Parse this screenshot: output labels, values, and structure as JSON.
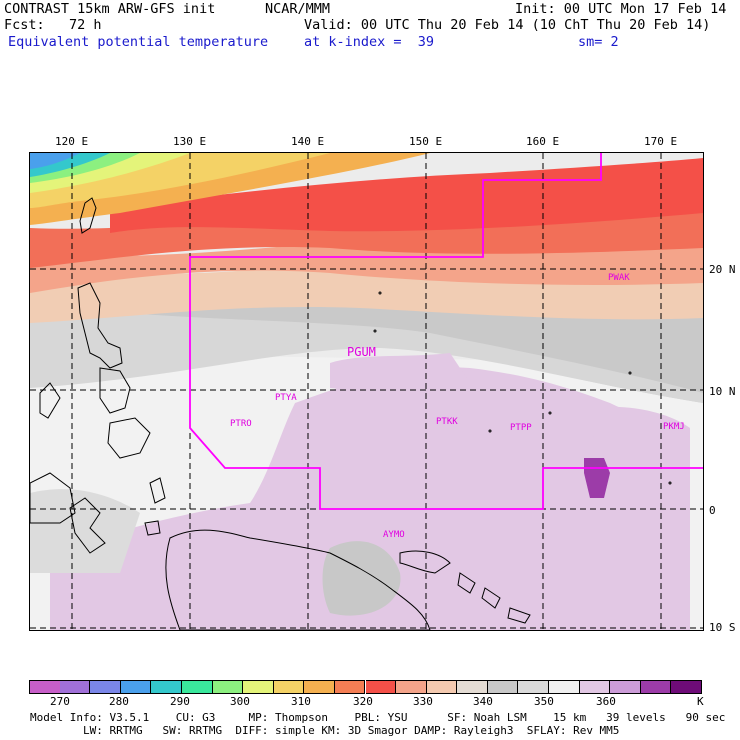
{
  "header": {
    "line1_left": "CONTRAST 15km ARW-GFS init",
    "line1_mid": "NCAR/MMM",
    "line1_right": "Init: 00 UTC Mon 17 Feb 14",
    "line2_left": "Fcst:   72 h",
    "line2_right": "Valid: 00 UTC Thu 20 Feb 14 (10 ChT Thu 20 Feb 14)",
    "line3_left": "Equivalent potential temperature",
    "line3_mid": "at k-index =  39",
    "line3_right": "sm= 2"
  },
  "map": {
    "lon_labels": [
      "120 E",
      "130 E",
      "140 E",
      "150 E",
      "160 E",
      "170 E"
    ],
    "lat_labels": [
      "20 N",
      "10 N",
      "0",
      "10 S"
    ],
    "stations": [
      "PWAK",
      "PGUM",
      "PTYA",
      "PTRO",
      "PTKK",
      "PTPP",
      "PKMJ",
      "AYMO"
    ]
  },
  "colorbar": {
    "labels": [
      "270",
      "280",
      "290",
      "300",
      "310",
      "320",
      "330",
      "340",
      "350",
      "360"
    ],
    "unit": "K",
    "colors": [
      "#c75ec8",
      "#a070d8",
      "#7a86e8",
      "#4aa0ec",
      "#34c8cc",
      "#3ae89c",
      "#8cf080",
      "#e4f47a",
      "#f4d266",
      "#f4b050",
      "#f47e54",
      "#f45048",
      "#f4a48a",
      "#f4cab0",
      "#e4dcd4",
      "#c8c8c8",
      "#dadada",
      "#f0f0f0",
      "#e2c8e4",
      "#cc9cd8",
      "#9c3ca8",
      "#6e0c78"
    ]
  },
  "footer": {
    "line1": "Model Info: V3.5.1    CU: G3     MP: Thompson    PBL: YSU      SF: Noah LSM    15 km   39 levels   90 sec",
    "line2": "LW: RRTMG   SW: RRTMG  DIFF: simple KM: 3D Smagor DAMP: Rayleigh3  SFLAY: Rev MM5"
  }
}
